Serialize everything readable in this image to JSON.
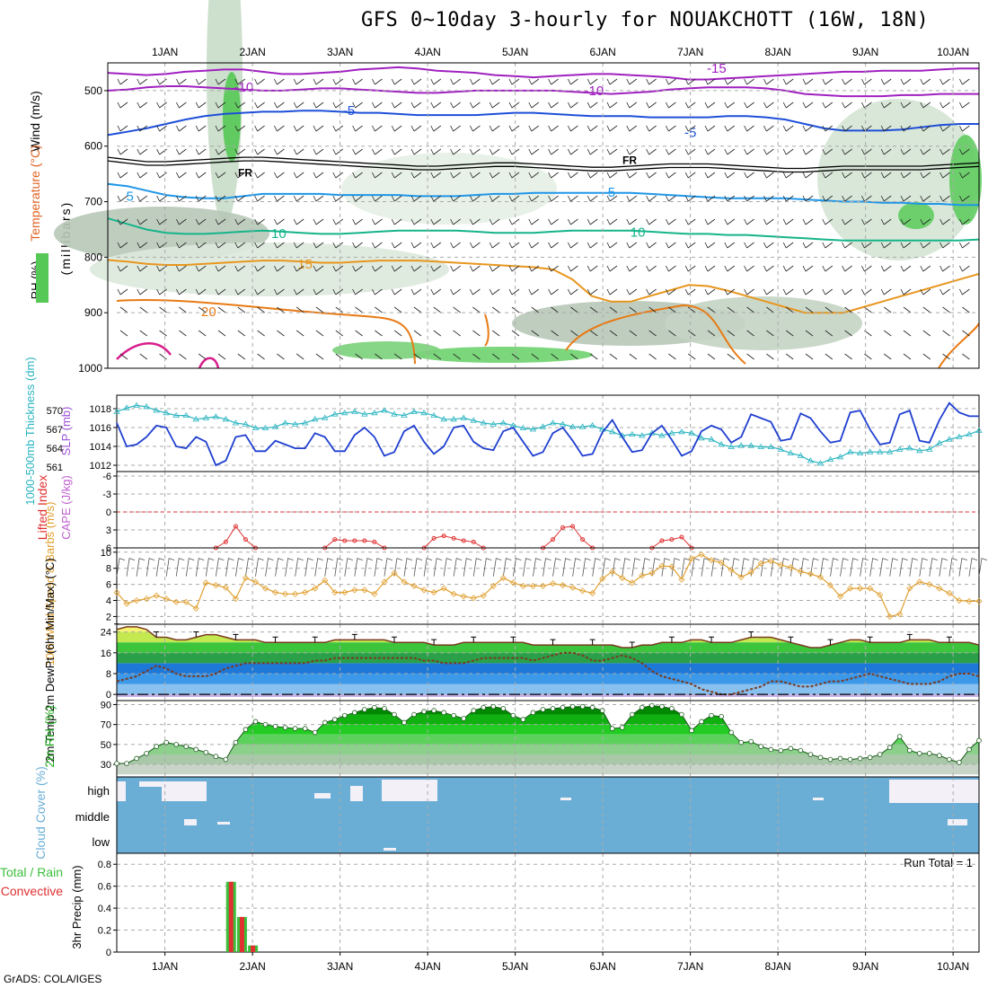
{
  "title": "GFS 0~10day 3-hourly for NOUAKCHOTT (16W, 18N)",
  "credit": "GrADS: COLA/IGES",
  "colors": {
    "temp_purple": "#a020c0",
    "temp_blue": "#1e4fd8",
    "temp_cyan": "#1e96e8",
    "temp_green": "#16b48a",
    "temp_orange": "#e8961e",
    "temp_darkorange": "#e87a14",
    "temp_magenta": "#d81e8c",
    "slp": "#1f3fd0",
    "thick": "#2ab4c0",
    "wind": "#e0a030",
    "cloud": "#6aaed6",
    "precip_total": "#3cbf3c",
    "precip_conv": "#e03030"
  },
  "chart_data": [
    {
      "type": "contour",
      "id": "upper_air",
      "ylabel_parts": [
        "Wind (m/s)",
        "Temperature (°C)",
        "RH (%)",
        "(millibars)"
      ],
      "yticks": [
        500,
        600,
        700,
        800,
        900,
        1000
      ],
      "ylim": [
        450,
        1000
      ],
      "xticks": [
        "1JAN",
        "2JAN",
        "3JAN",
        "4JAN",
        "5JAN",
        "6JAN",
        "7JAN",
        "8JAN",
        "9JAN",
        "10JAN"
      ],
      "freezing_label": "FR",
      "isotherm_labels": [
        {
          "label": "-15",
          "x": 7.3,
          "p": 460,
          "color": "temp_purple"
        },
        {
          "label": "-10",
          "x": 1.9,
          "p": 494,
          "color": "temp_purple"
        },
        {
          "label": "-10",
          "x": 5.9,
          "p": 500,
          "color": "temp_purple"
        },
        {
          "label": "-5",
          "x": 3.1,
          "p": 536,
          "color": "temp_blue"
        },
        {
          "label": "-5",
          "x": 7.0,
          "p": 575,
          "color": "temp_blue"
        },
        {
          "label": "5",
          "x": 0.6,
          "p": 690,
          "color": "temp_cyan"
        },
        {
          "label": "5",
          "x": 6.1,
          "p": 683,
          "color": "temp_cyan"
        },
        {
          "label": "10",
          "x": 2.3,
          "p": 757,
          "color": "temp_green"
        },
        {
          "label": "10",
          "x": 6.4,
          "p": 755,
          "color": "temp_green"
        },
        {
          "label": "15",
          "x": 2.6,
          "p": 812,
          "color": "temp_orange"
        },
        {
          "label": "20",
          "x": 1.5,
          "p": 898,
          "color": "temp_darkorange"
        }
      ]
    },
    {
      "type": "line",
      "id": "slp_thickness",
      "ylabel_left": "1000-500mb Thickness (dm)",
      "ylabel_right": "SLP (mb)",
      "thickness_ticks": [
        561,
        564,
        567,
        570
      ],
      "slp_ticks": [
        1012,
        1014,
        1016,
        1018
      ],
      "series": [
        {
          "name": "SLP (mb)",
          "color": "slp",
          "values": [
            1016.5,
            1014.0,
            1014.2,
            1015.0,
            1016.2,
            1016.0,
            1014.0,
            1013.8,
            1015.0,
            1014.5,
            1012.0,
            1012.5,
            1015.0,
            1015.2,
            1013.5,
            1013.5,
            1014.6,
            1014.2,
            1013.8,
            1013.8,
            1015.4,
            1015.0,
            1013.5,
            1013.5,
            1015.2,
            1016.0,
            1015.0,
            1013.0,
            1013.4,
            1015.6,
            1016.2,
            1014.5,
            1013.2,
            1014.0,
            1016.0,
            1016.2,
            1014.5,
            1013.8,
            1013.6,
            1015.6,
            1016.0,
            1014.5,
            1013.0,
            1013.4,
            1015.4,
            1016.0,
            1014.6,
            1013.0,
            1013.2,
            1015.5,
            1016.8,
            1015.0,
            1013.4,
            1013.6,
            1015.4,
            1016.2,
            1014.7,
            1013.0,
            1013.5,
            1015.6,
            1016.2,
            1015.8,
            1014.4,
            1015.0,
            1017.4,
            1017.0,
            1016.6,
            1014.6,
            1014.8,
            1017.5,
            1017.0,
            1015.6,
            1014.4,
            1014.6,
            1017.6,
            1017.8,
            1015.8,
            1014.2,
            1014.4,
            1017.4,
            1017.8,
            1014.6,
            1014.4,
            1016.8,
            1018.6,
            1017.6,
            1017.2,
            1017.2
          ]
        },
        {
          "name": "Thickness (dm)",
          "color": "thick",
          "values": [
            569.8,
            570.4,
            570.8,
            570.6,
            570.0,
            569.6,
            569.2,
            569.2,
            568.6,
            568.8,
            569.0,
            568.6,
            568.0,
            567.8,
            567.2,
            567.2,
            567.4,
            568.0,
            567.8,
            568.0,
            568.6,
            568.8,
            569.4,
            569.6,
            569.8,
            569.4,
            569.6,
            570.0,
            569.4,
            569.2,
            569.8,
            569.6,
            569.2,
            568.6,
            568.6,
            568.8,
            568.4,
            568.0,
            567.8,
            568.0,
            567.6,
            567.2,
            567.0,
            567.4,
            568.0,
            567.8,
            567.4,
            567.4,
            567.6,
            567.0,
            566.6,
            566.0,
            566.2,
            566.0,
            566.4,
            566.0,
            566.4,
            566.6,
            566.4,
            565.6,
            565.4,
            564.6,
            564.2,
            564.4,
            564.4,
            564.2,
            564.2,
            563.8,
            563.2,
            562.8,
            562.0,
            561.6,
            562.2,
            562.6,
            563.4,
            563.2,
            563.4,
            563.4,
            563.4,
            563.8,
            564.0,
            563.6,
            563.8,
            564.8,
            565.4,
            565.8,
            566.2,
            566.8
          ]
        }
      ]
    },
    {
      "type": "line",
      "id": "lifted_cape",
      "ylabel_left": "Lifted Index",
      "ylabel_right": "CAPE (J/kg)",
      "li_ticks": [
        "-6",
        "-3",
        "0",
        "3",
        "6"
      ],
      "segments": [
        {
          "start": 10,
          "values": [
            6.0,
            5.0,
            2.4,
            4.6,
            6.0
          ]
        },
        {
          "start": 21,
          "values": [
            6.0,
            4.6,
            4.8,
            4.8,
            4.8,
            5.0,
            6.0
          ]
        },
        {
          "start": 31,
          "values": [
            6.0,
            4.4,
            4.0,
            4.4,
            4.8,
            5.0,
            6.0
          ]
        },
        {
          "start": 43,
          "values": [
            6.0,
            4.6,
            2.6,
            2.4,
            4.6,
            6.0
          ]
        },
        {
          "start": 54,
          "values": [
            6.0,
            4.8,
            4.6,
            4.2,
            6.0
          ]
        }
      ]
    },
    {
      "type": "line",
      "id": "wind10m",
      "ylabel": "10m Wind Speed & Barbs (m/s)",
      "yticks": [
        2,
        4,
        6,
        8,
        10
      ],
      "series": [
        {
          "name": "10m Wind Speed (m/s)",
          "color": "wind",
          "values": [
            5.0,
            3.6,
            4.0,
            4.2,
            4.6,
            4.2,
            3.8,
            3.8,
            3.0,
            6.2,
            5.9,
            5.6,
            4.2,
            6.8,
            6.3,
            5.5,
            5.0,
            4.8,
            4.8,
            5.0,
            5.5,
            6.5,
            5.0,
            5.0,
            5.3,
            5.3,
            4.8,
            6.3,
            7.4,
            6.3,
            5.8,
            5.3,
            5.0,
            5.5,
            4.8,
            4.5,
            4.3,
            4.6,
            5.8,
            6.8,
            6.2,
            5.8,
            5.8,
            5.8,
            6.1,
            5.9,
            5.6,
            5.2,
            4.9,
            6.7,
            7.6,
            6.8,
            6.2,
            7.1,
            7.4,
            8.3,
            8.2,
            6.6,
            9.2,
            9.7,
            9.0,
            8.7,
            7.8,
            6.9,
            7.5,
            8.6,
            8.9,
            8.4,
            8.1,
            7.6,
            7.3,
            6.9,
            5.9,
            4.5,
            5.5,
            5.5,
            5.5,
            4.7,
            2.0,
            2.3,
            5.5,
            6.3,
            6.0,
            5.5,
            4.9,
            4.0,
            3.9,
            3.9
          ]
        }
      ]
    },
    {
      "type": "area",
      "id": "temp2m",
      "ylabel": "2m Temp 2m DewPt (6hr Min/Max) (°C)",
      "yticks": [
        0,
        8,
        16,
        24
      ],
      "series": [
        {
          "name": "2m Temp",
          "values": [
            25,
            26,
            26,
            25,
            22,
            22,
            21,
            21,
            22,
            23,
            23,
            22,
            21,
            21,
            21,
            20,
            20,
            20,
            20,
            20,
            20,
            20,
            21,
            21,
            21,
            21,
            21,
            21,
            20,
            20,
            20,
            20,
            19,
            19,
            19,
            20,
            20,
            20,
            20,
            20,
            20,
            20,
            19,
            19,
            19,
            19,
            19,
            19,
            19,
            19,
            19,
            18,
            18,
            19,
            19,
            20,
            20,
            20,
            21,
            21,
            20,
            20,
            20,
            21,
            22,
            22,
            22,
            21,
            20,
            19,
            18,
            18,
            19,
            20,
            21,
            21,
            20,
            20,
            20,
            20,
            21,
            21,
            21,
            20,
            20,
            20,
            20,
            19
          ]
        },
        {
          "name": "2m DewPt",
          "values": [
            5,
            6,
            7,
            9,
            11,
            10,
            8,
            7,
            7,
            7,
            8,
            10,
            11,
            12,
            12,
            12,
            12,
            12,
            12,
            12,
            13,
            13,
            14,
            14,
            14,
            14,
            14,
            14,
            14,
            14,
            14,
            13,
            13,
            12,
            12,
            12,
            13,
            14,
            14,
            14,
            14,
            14,
            13,
            14,
            15,
            16,
            16,
            15,
            13,
            13,
            14,
            15,
            14,
            12,
            9,
            7,
            6,
            5,
            4,
            2,
            1,
            0,
            0,
            1,
            2,
            3,
            5,
            5,
            4,
            3,
            3,
            4,
            5,
            5,
            6,
            7,
            8,
            7,
            6,
            5,
            4,
            4,
            4,
            5,
            7,
            8,
            8,
            7
          ]
        }
      ]
    },
    {
      "type": "area",
      "id": "rh2m",
      "ylabel": "2m RH (%)",
      "yticks": [
        30,
        50,
        70,
        90
      ],
      "series": [
        {
          "name": "2m RH (%)",
          "values": [
            31,
            31,
            36,
            41,
            48,
            52,
            50,
            48,
            45,
            42,
            38,
            35,
            52,
            65,
            73,
            70,
            68,
            67,
            66,
            66,
            62,
            72,
            75,
            79,
            82,
            85,
            87,
            86,
            80,
            72,
            80,
            83,
            84,
            82,
            79,
            76,
            84,
            87,
            88,
            86,
            79,
            75,
            82,
            85,
            86,
            87,
            88,
            88,
            87,
            84,
            66,
            67,
            80,
            87,
            89,
            88,
            86,
            80,
            64,
            73,
            79,
            78,
            62,
            52,
            53,
            48,
            45,
            44,
            46,
            44,
            40,
            37,
            35,
            36,
            35,
            36,
            37,
            40,
            47,
            58,
            44,
            41,
            41,
            39,
            35,
            32,
            45,
            54
          ]
        }
      ]
    },
    {
      "type": "heatmap",
      "id": "cloud",
      "ylabel": "Cloud Cover (%)",
      "levels": [
        "high",
        "middle",
        "low"
      ]
    },
    {
      "type": "bar",
      "id": "precip",
      "ylabel_parts": [
        "Total / Rain",
        "Convective",
        "3hr Precip (mm)"
      ],
      "yticks": [
        0,
        0.2,
        0.4,
        0.6,
        0.8
      ],
      "run_total": "Run Total = 1",
      "bars": [
        {
          "x": 1.75,
          "total": 0.64,
          "convective": 0.64
        },
        {
          "x": 1.875,
          "total": 0.32,
          "convective": 0.32
        },
        {
          "x": 2.0,
          "total": 0.06,
          "convective": 0.06
        }
      ]
    }
  ]
}
